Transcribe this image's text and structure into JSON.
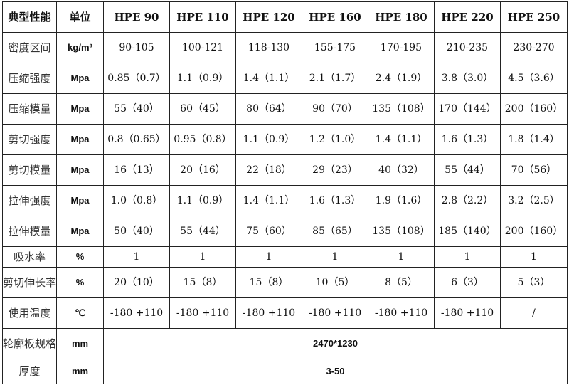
{
  "table": {
    "headers": [
      "典型性能",
      "单位",
      "HPE 90",
      "HPE 110",
      "HPE 120",
      "HPE 160",
      "HPE 180",
      "HPE 220",
      "HPE 250"
    ],
    "rows": [
      {
        "prop": "密度区间",
        "unit": "kg/m³",
        "values": [
          "90-105",
          "100-121",
          "118-130",
          "155-175",
          "170-195",
          "210-235",
          "230-270"
        ]
      },
      {
        "prop": "压缩强度",
        "unit": "Mpa",
        "values": [
          "0.85（0.7）",
          "1.1（0.9）",
          "1.4（1.1）",
          "2.1（1.7）",
          "2.4（1.9）",
          "3.8（3.0）",
          "4.5（3.6）"
        ]
      },
      {
        "prop": "压缩模量",
        "unit": "Mpa",
        "values": [
          "55（40）",
          "60（45）",
          "80（64）",
          "90（70）",
          "135（108）",
          "170（144）",
          "200（160）"
        ]
      },
      {
        "prop": "剪切强度",
        "unit": "Mpa",
        "values": [
          "0.8（0.65）",
          "0.95（0.8）",
          "1.1（0.9）",
          "1.2（1.0）",
          "1.4（1.1）",
          "1.6（1.3）",
          "1.8（1.4）"
        ]
      },
      {
        "prop": "剪切模量",
        "unit": "Mpa",
        "values": [
          "16（13）",
          "20（16）",
          "22（18）",
          "29（23）",
          "40（32）",
          "55（44）",
          "70（56）"
        ]
      },
      {
        "prop": "拉伸强度",
        "unit": "Mpa",
        "values": [
          "1.0（0.8）",
          "1.1（0.9）",
          "1.4（1.1）",
          "1.6（1.3）",
          "1.9（1.6）",
          "2.8（2.2）",
          "3.2（2.5）"
        ]
      },
      {
        "prop": "拉伸模量",
        "unit": "Mpa",
        "values": [
          "50（40）",
          "55（44）",
          "75（60）",
          "85（65）",
          "135（108）",
          "185（140）",
          "200（160）"
        ]
      },
      {
        "prop": "吸水率",
        "unit": "%",
        "values": [
          "1",
          "1",
          "1",
          "1",
          "1",
          "1",
          "1"
        ]
      },
      {
        "prop": "剪切伸长率",
        "unit": "%",
        "values": [
          "20（10）",
          "15（8）",
          "15（8）",
          "10（5）",
          "8（5）",
          "6（3）",
          "5（3）"
        ]
      },
      {
        "prop": "使用温度",
        "unit": "℃",
        "values": [
          "-180 +110",
          "-180 +110",
          "-180 +110",
          "-180 +110",
          "-180 +110",
          "-180 +110",
          "/"
        ]
      }
    ],
    "merged_rows": [
      {
        "prop": "轮廓板规格",
        "unit": "mm",
        "value": "2470*1230"
      },
      {
        "prop": "厚度",
        "unit": "mm",
        "value": "3-50"
      }
    ]
  }
}
